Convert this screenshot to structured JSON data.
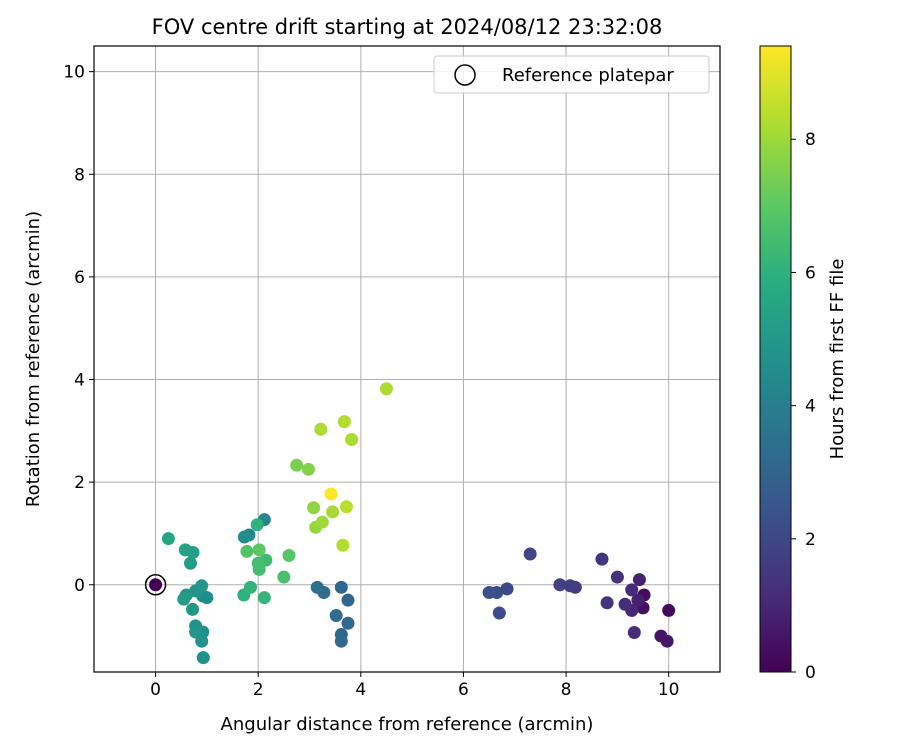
{
  "chart_data": {
    "type": "scatter",
    "title": "FOV centre drift starting at 2024/08/12 23:32:08",
    "xlabel": "Angular distance from reference (arcmin)",
    "ylabel": "Rotation from reference (arcmin)",
    "xlim": [
      -1.2,
      11.0
    ],
    "ylim": [
      -1.7,
      10.5
    ],
    "x_ticks": [
      0,
      2,
      4,
      6,
      8,
      10
    ],
    "y_ticks": [
      0,
      2,
      4,
      6,
      8,
      10
    ],
    "grid": true,
    "legend": {
      "position": "top-right",
      "entries": [
        "Reference platepar"
      ]
    },
    "colorbar": {
      "label": "Hours from first FF file",
      "range": [
        0,
        9.4
      ],
      "ticks": [
        0,
        2,
        4,
        6,
        8
      ],
      "colormap": "viridis"
    },
    "reference_point": {
      "x": 0,
      "y": 0
    },
    "points": [
      {
        "x": 0.0,
        "y": 0.0,
        "c": 0.0
      },
      {
        "x": 10.0,
        "y": -0.5,
        "c": 0.2
      },
      {
        "x": 9.52,
        "y": -0.2,
        "c": 0.3
      },
      {
        "x": 9.5,
        "y": -0.45,
        "c": 0.4
      },
      {
        "x": 9.85,
        "y": -1.0,
        "c": 0.5
      },
      {
        "x": 9.97,
        "y": -1.1,
        "c": 0.6
      },
      {
        "x": 9.4,
        "y": -0.3,
        "c": 0.8
      },
      {
        "x": 9.43,
        "y": 0.1,
        "c": 0.9
      },
      {
        "x": 9.28,
        "y": -0.5,
        "c": 1.0
      },
      {
        "x": 9.28,
        "y": -0.1,
        "c": 1.1
      },
      {
        "x": 9.33,
        "y": -0.93,
        "c": 1.2
      },
      {
        "x": 9.15,
        "y": -0.38,
        "c": 1.2
      },
      {
        "x": 9.0,
        "y": 0.15,
        "c": 1.3
      },
      {
        "x": 8.8,
        "y": -0.35,
        "c": 1.4
      },
      {
        "x": 8.7,
        "y": 0.5,
        "c": 1.5
      },
      {
        "x": 8.18,
        "y": -0.05,
        "c": 1.6
      },
      {
        "x": 8.08,
        "y": -0.02,
        "c": 1.7
      },
      {
        "x": 7.88,
        "y": 0.0,
        "c": 1.8
      },
      {
        "x": 7.3,
        "y": 0.6,
        "c": 2.0
      },
      {
        "x": 6.85,
        "y": -0.08,
        "c": 2.1
      },
      {
        "x": 6.65,
        "y": -0.15,
        "c": 2.2
      },
      {
        "x": 6.7,
        "y": -0.55,
        "c": 2.2
      },
      {
        "x": 6.5,
        "y": -0.15,
        "c": 2.3
      },
      {
        "x": 3.75,
        "y": -0.3,
        "c": 3.0
      },
      {
        "x": 3.62,
        "y": -0.05,
        "c": 3.1
      },
      {
        "x": 3.75,
        "y": -0.75,
        "c": 3.1
      },
      {
        "x": 3.62,
        "y": -0.97,
        "c": 3.2
      },
      {
        "x": 3.62,
        "y": -1.1,
        "c": 3.2
      },
      {
        "x": 3.52,
        "y": -0.6,
        "c": 3.3
      },
      {
        "x": 3.28,
        "y": -0.15,
        "c": 3.3
      },
      {
        "x": 3.15,
        "y": -0.05,
        "c": 3.4
      },
      {
        "x": 2.12,
        "y": 1.27,
        "c": 4.3
      },
      {
        "x": 1.82,
        "y": 0.97,
        "c": 4.4
      },
      {
        "x": 1.73,
        "y": 0.93,
        "c": 4.5
      },
      {
        "x": 0.92,
        "y": -0.22,
        "c": 4.6
      },
      {
        "x": 1.0,
        "y": -0.25,
        "c": 4.6
      },
      {
        "x": 0.9,
        "y": -1.1,
        "c": 4.7
      },
      {
        "x": 0.92,
        "y": -0.92,
        "c": 4.7
      },
      {
        "x": 0.93,
        "y": -1.42,
        "c": 4.7
      },
      {
        "x": 0.82,
        "y": -0.9,
        "c": 4.8
      },
      {
        "x": 0.78,
        "y": -0.8,
        "c": 4.8
      },
      {
        "x": 0.78,
        "y": -0.92,
        "c": 4.9
      },
      {
        "x": 0.78,
        "y": -0.12,
        "c": 4.9
      },
      {
        "x": 0.9,
        "y": -0.02,
        "c": 5.0
      },
      {
        "x": 0.72,
        "y": -0.48,
        "c": 5.0
      },
      {
        "x": 0.6,
        "y": -0.2,
        "c": 5.0
      },
      {
        "x": 0.55,
        "y": -0.28,
        "c": 5.1
      },
      {
        "x": 0.68,
        "y": 0.42,
        "c": 5.2
      },
      {
        "x": 0.73,
        "y": 0.63,
        "c": 5.3
      },
      {
        "x": 0.58,
        "y": 0.68,
        "c": 5.4
      },
      {
        "x": 0.25,
        "y": 0.9,
        "c": 5.5
      },
      {
        "x": 1.72,
        "y": -0.2,
        "c": 6.0
      },
      {
        "x": 1.85,
        "y": -0.05,
        "c": 6.1
      },
      {
        "x": 2.12,
        "y": -0.25,
        "c": 6.2
      },
      {
        "x": 2.15,
        "y": 0.48,
        "c": 6.4
      },
      {
        "x": 2.02,
        "y": 0.3,
        "c": 6.5
      },
      {
        "x": 2.0,
        "y": 0.42,
        "c": 6.5
      },
      {
        "x": 2.5,
        "y": 0.15,
        "c": 6.6
      },
      {
        "x": 2.6,
        "y": 0.57,
        "c": 6.9
      },
      {
        "x": 1.98,
        "y": 1.17,
        "c": 6.0
      },
      {
        "x": 1.78,
        "y": 0.65,
        "c": 6.8
      },
      {
        "x": 2.02,
        "y": 0.68,
        "c": 7.0
      },
      {
        "x": 2.75,
        "y": 2.33,
        "c": 7.5
      },
      {
        "x": 2.98,
        "y": 2.25,
        "c": 7.6
      },
      {
        "x": 3.08,
        "y": 1.5,
        "c": 7.8
      },
      {
        "x": 3.12,
        "y": 1.12,
        "c": 7.9
      },
      {
        "x": 3.25,
        "y": 1.22,
        "c": 8.0
      },
      {
        "x": 3.45,
        "y": 1.42,
        "c": 8.1
      },
      {
        "x": 3.65,
        "y": 0.77,
        "c": 8.3
      },
      {
        "x": 3.72,
        "y": 1.52,
        "c": 8.4
      },
      {
        "x": 3.22,
        "y": 3.03,
        "c": 8.2
      },
      {
        "x": 3.68,
        "y": 3.18,
        "c": 8.3
      },
      {
        "x": 3.82,
        "y": 2.83,
        "c": 8.2
      },
      {
        "x": 4.5,
        "y": 3.82,
        "c": 8.2
      },
      {
        "x": 3.42,
        "y": 1.77,
        "c": 9.4
      }
    ]
  }
}
